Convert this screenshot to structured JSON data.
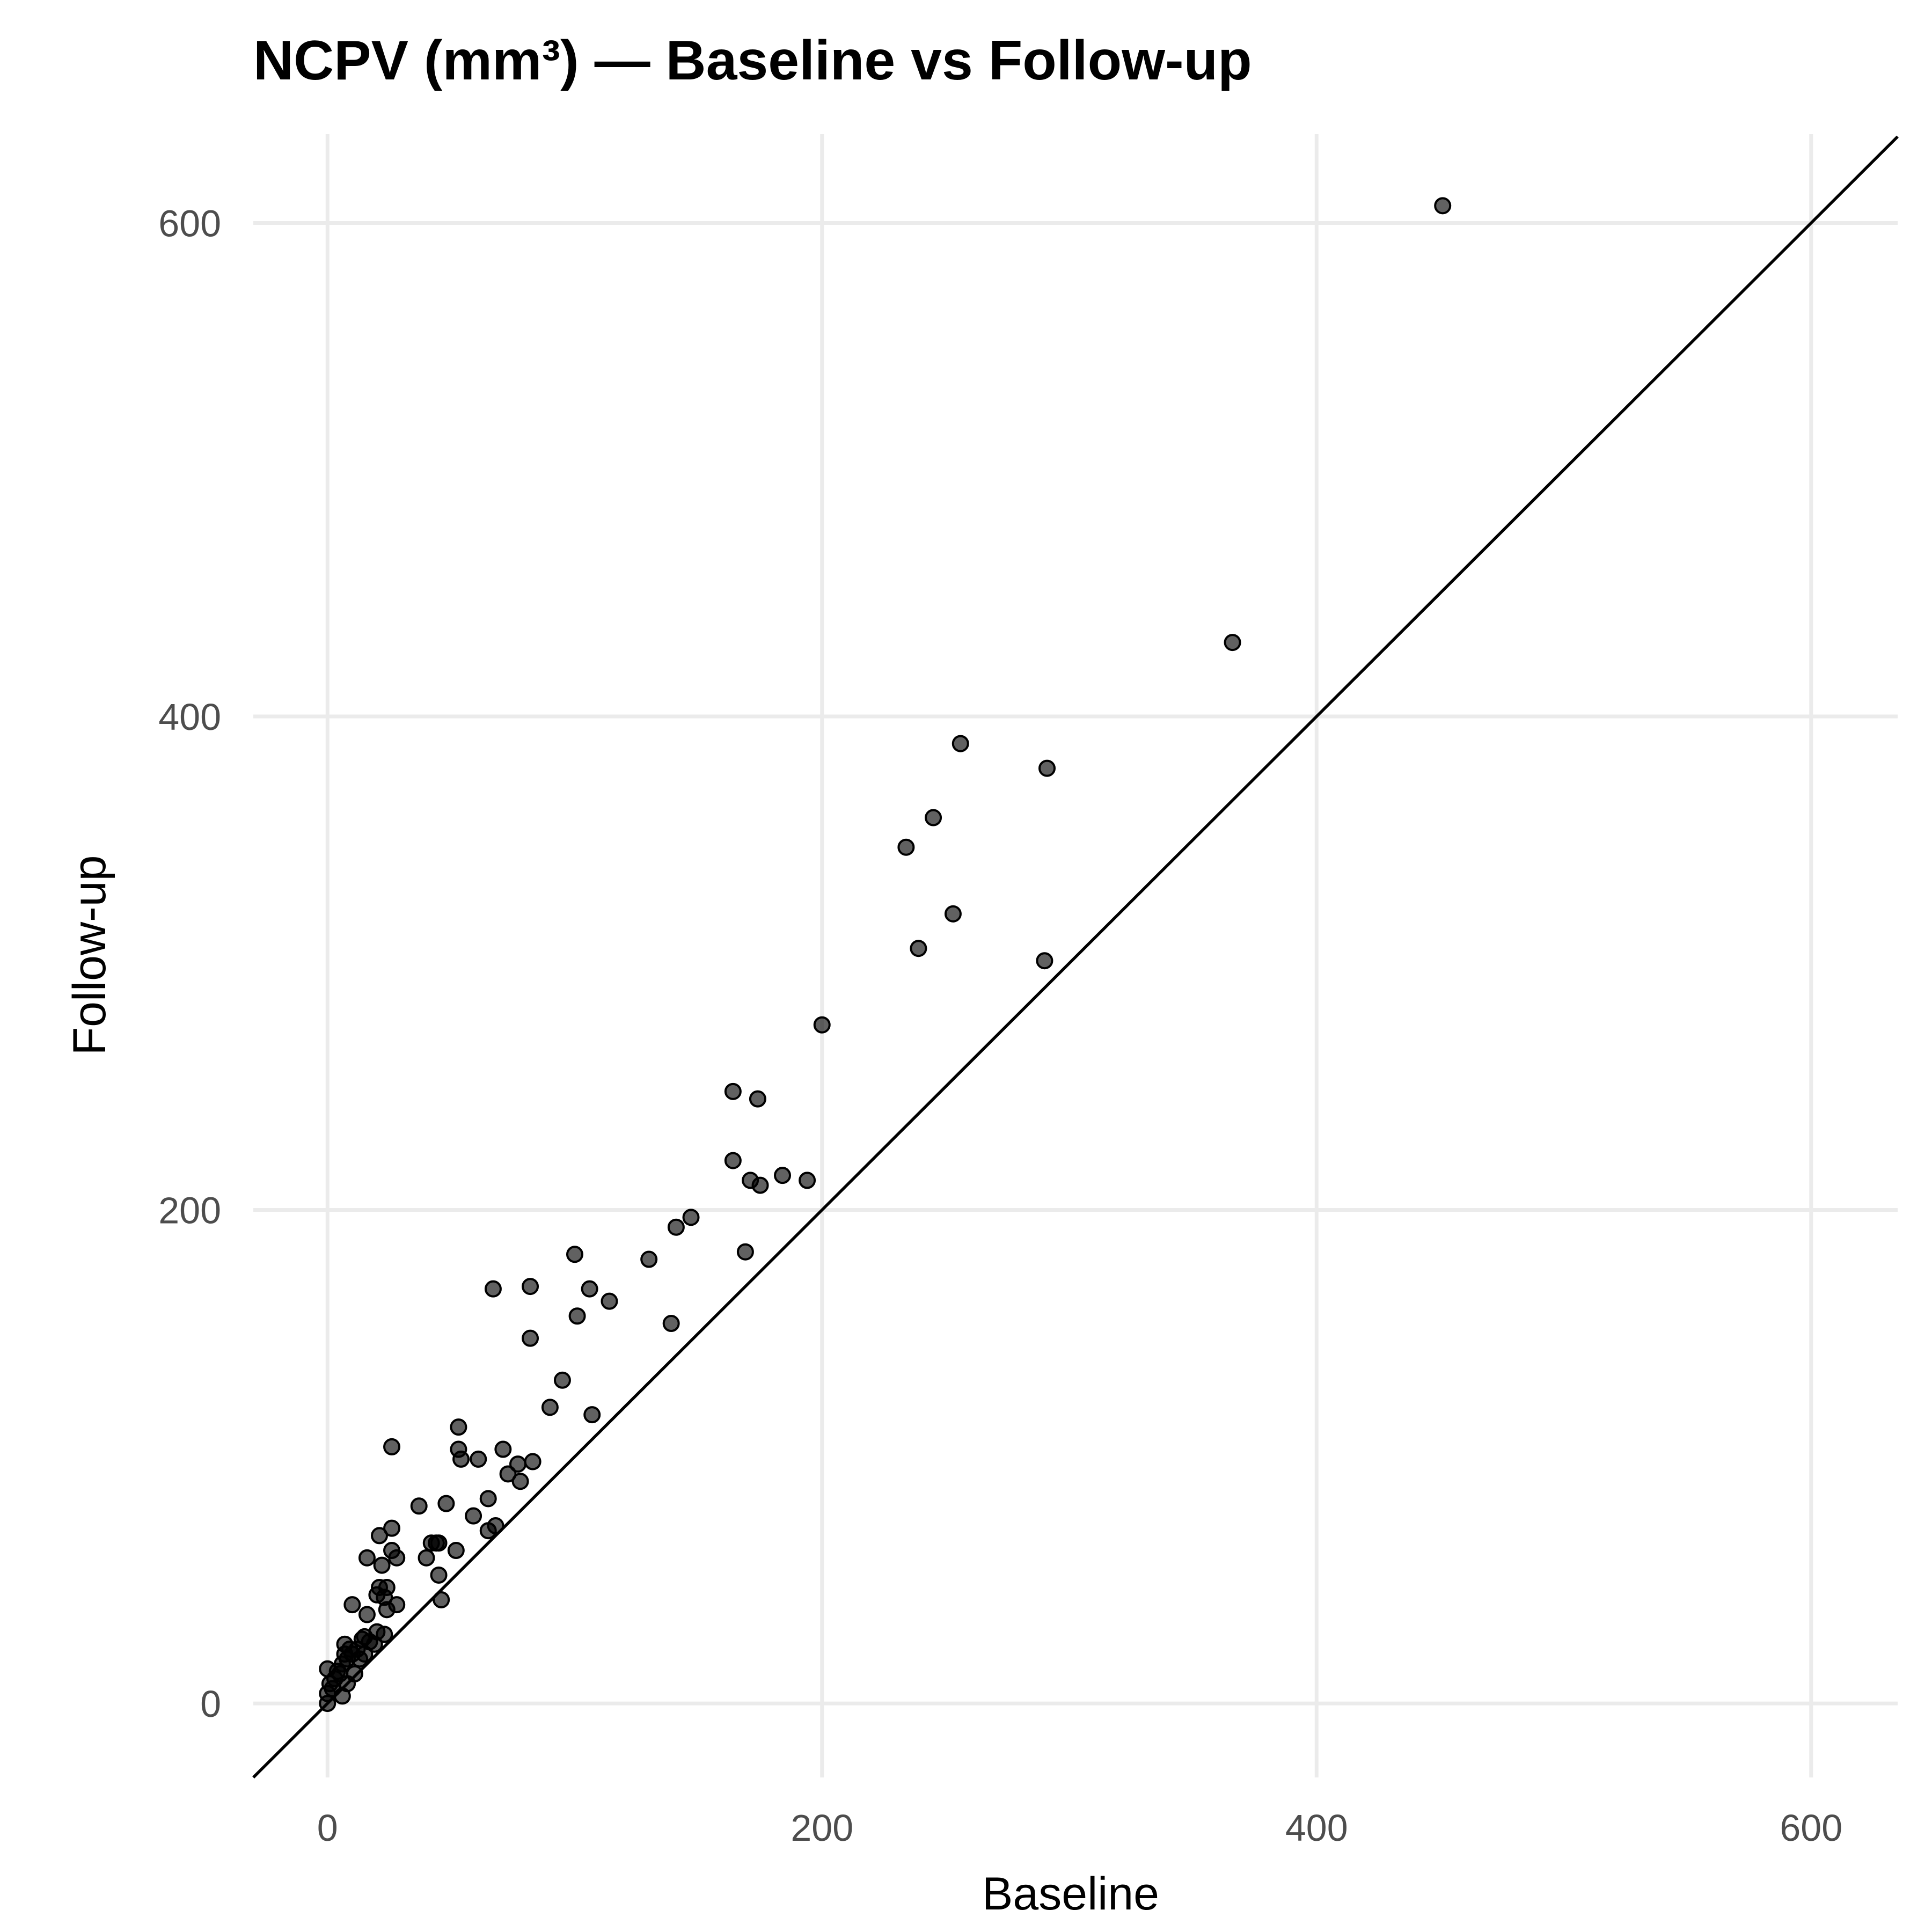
{
  "chart_data": {
    "type": "scatter",
    "title": "NCPV (mm³) — Baseline vs Follow-up",
    "xlabel": "Baseline",
    "ylabel": "Follow-up",
    "xlim": [
      -30,
      635
    ],
    "ylim": [
      -30,
      636
    ],
    "xticks": [
      0,
      200,
      400,
      600
    ],
    "yticks": [
      0,
      200,
      400,
      600
    ],
    "xtick_labels": [
      "0",
      "200",
      "400",
      "600"
    ],
    "ytick_labels": [
      "0",
      "200",
      "400",
      "600"
    ],
    "grid": true,
    "legend": "none",
    "reference_line": "y = x",
    "point_color": "#000000",
    "points": [
      [
        0,
        0
      ],
      [
        0,
        4
      ],
      [
        1,
        8
      ],
      [
        0,
        14
      ],
      [
        2,
        6
      ],
      [
        3,
        10
      ],
      [
        4,
        13
      ],
      [
        5,
        12
      ],
      [
        6,
        3
      ],
      [
        6,
        16
      ],
      [
        7,
        20
      ],
      [
        7,
        24
      ],
      [
        8,
        8
      ],
      [
        8,
        18
      ],
      [
        9,
        22
      ],
      [
        10,
        20
      ],
      [
        10,
        40
      ],
      [
        11,
        12
      ],
      [
        12,
        22
      ],
      [
        13,
        18
      ],
      [
        14,
        26
      ],
      [
        15,
        20
      ],
      [
        15,
        27
      ],
      [
        16,
        36
      ],
      [
        16,
        59
      ],
      [
        17,
        25
      ],
      [
        19,
        24
      ],
      [
        20,
        29
      ],
      [
        20,
        44
      ],
      [
        21,
        47
      ],
      [
        21,
        68
      ],
      [
        22,
        56
      ],
      [
        23,
        28
      ],
      [
        23,
        43
      ],
      [
        24,
        47
      ],
      [
        24,
        38
      ],
      [
        26,
        62
      ],
      [
        26,
        71
      ],
      [
        26,
        104
      ],
      [
        28,
        40
      ],
      [
        28,
        59
      ],
      [
        37,
        80
      ],
      [
        40,
        59
      ],
      [
        42,
        65
      ],
      [
        44,
        65
      ],
      [
        45,
        52
      ],
      [
        45,
        65
      ],
      [
        46,
        42
      ],
      [
        48,
        81
      ],
      [
        52,
        62
      ],
      [
        53,
        103
      ],
      [
        53,
        112
      ],
      [
        54,
        99
      ],
      [
        59,
        76
      ],
      [
        61,
        99
      ],
      [
        65,
        70
      ],
      [
        65,
        83
      ],
      [
        67,
        168
      ],
      [
        68,
        72
      ],
      [
        71,
        103
      ],
      [
        73,
        93
      ],
      [
        77,
        97
      ],
      [
        78,
        90
      ],
      [
        82,
        148
      ],
      [
        82,
        169
      ],
      [
        83,
        98
      ],
      [
        90,
        120
      ],
      [
        95,
        131
      ],
      [
        100,
        182
      ],
      [
        101,
        157
      ],
      [
        106,
        168
      ],
      [
        107,
        117
      ],
      [
        114,
        163
      ],
      [
        130,
        180
      ],
      [
        139,
        154
      ],
      [
        141,
        193
      ],
      [
        147,
        197
      ],
      [
        164,
        248
      ],
      [
        164,
        220
      ],
      [
        169,
        183
      ],
      [
        171,
        212
      ],
      [
        174,
        245
      ],
      [
        175,
        210
      ],
      [
        184,
        214
      ],
      [
        194,
        212
      ],
      [
        200,
        275
      ],
      [
        234,
        347
      ],
      [
        239,
        306
      ],
      [
        245,
        359
      ],
      [
        253,
        320
      ],
      [
        256,
        389
      ],
      [
        290,
        301
      ],
      [
        291,
        379
      ],
      [
        366,
        430
      ],
      [
        451,
        607
      ]
    ]
  }
}
